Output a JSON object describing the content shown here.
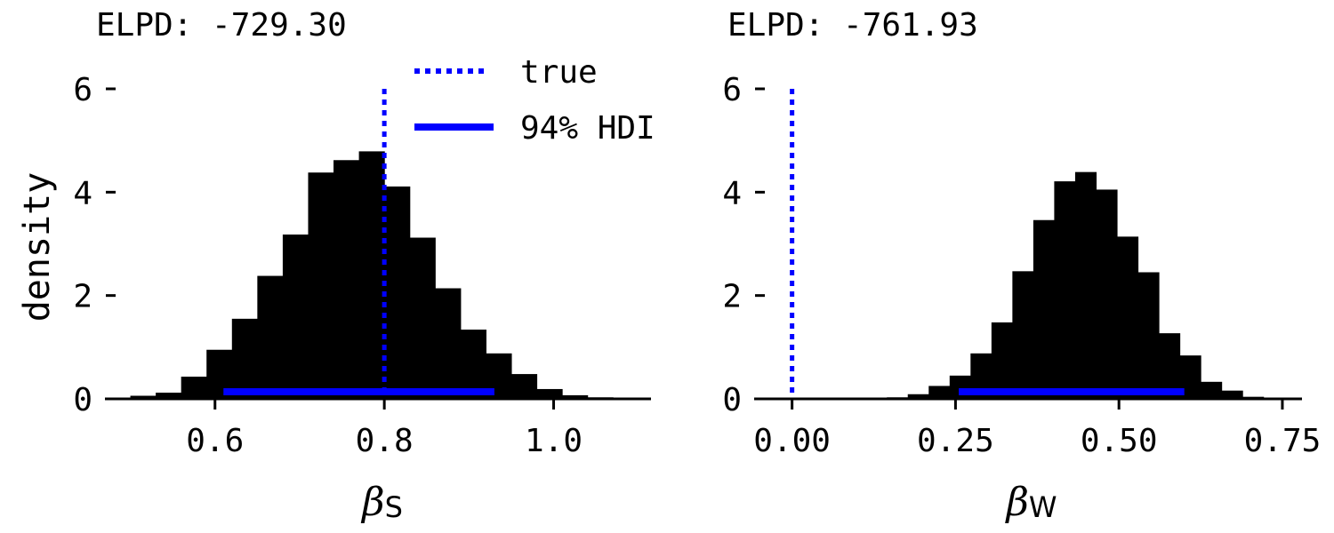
{
  "chart_data": [
    {
      "type": "histogram",
      "title": "ELPD: -729.30",
      "ylabel": "density",
      "xlabel": {
        "symbol": "β",
        "subscript": "S"
      },
      "xlim": [
        0.47,
        1.115
      ],
      "ylim": [
        0,
        6
      ],
      "xticks": [
        0.6,
        0.8,
        1.0
      ],
      "xtick_labels": [
        "0.6",
        "0.8",
        "1.0"
      ],
      "yticks": [
        0,
        2,
        4,
        6
      ],
      "ytick_labels": [
        "0",
        "2",
        "4",
        "6"
      ],
      "bins": [
        {
          "x0": 0.5,
          "x1": 0.53,
          "density": 0.06
        },
        {
          "x0": 0.53,
          "x1": 0.56,
          "density": 0.12
        },
        {
          "x0": 0.56,
          "x1": 0.59,
          "density": 0.43
        },
        {
          "x0": 0.59,
          "x1": 0.62,
          "density": 0.95
        },
        {
          "x0": 0.62,
          "x1": 0.65,
          "density": 1.55
        },
        {
          "x0": 0.65,
          "x1": 0.68,
          "density": 2.38
        },
        {
          "x0": 0.68,
          "x1": 0.71,
          "density": 3.18
        },
        {
          "x0": 0.71,
          "x1": 0.74,
          "density": 4.38
        },
        {
          "x0": 0.74,
          "x1": 0.77,
          "density": 4.62
        },
        {
          "x0": 0.77,
          "x1": 0.8,
          "density": 4.79
        },
        {
          "x0": 0.8,
          "x1": 0.83,
          "density": 4.11
        },
        {
          "x0": 0.83,
          "x1": 0.86,
          "density": 3.12
        },
        {
          "x0": 0.86,
          "x1": 0.89,
          "density": 2.14
        },
        {
          "x0": 0.89,
          "x1": 0.92,
          "density": 1.34
        },
        {
          "x0": 0.92,
          "x1": 0.95,
          "density": 0.88
        },
        {
          "x0": 0.95,
          "x1": 0.98,
          "density": 0.48
        },
        {
          "x0": 0.98,
          "x1": 1.01,
          "density": 0.19
        },
        {
          "x0": 1.01,
          "x1": 1.04,
          "density": 0.07
        },
        {
          "x0": 1.04,
          "x1": 1.07,
          "density": 0.03
        }
      ],
      "true_value": 0.8,
      "hdi_94": [
        0.61,
        0.93
      ],
      "legend": {
        "placement": "top-right",
        "entries": [
          "true",
          "94% HDI"
        ]
      }
    },
    {
      "type": "histogram",
      "title": "ELPD: -761.93",
      "ylabel": "",
      "xlabel": {
        "symbol": "β",
        "subscript": "W"
      },
      "xlim": [
        -0.058,
        0.78
      ],
      "ylim": [
        0,
        6
      ],
      "xticks": [
        0.0,
        0.25,
        0.5,
        0.75
      ],
      "xtick_labels": [
        "0.00",
        "0.25",
        "0.50",
        "0.75"
      ],
      "yticks": [
        0,
        2,
        4,
        6
      ],
      "ytick_labels": [
        "0",
        "2",
        "4",
        "6"
      ],
      "bins": [
        {
          "x0": 0.145,
          "x1": 0.177,
          "density": 0.03
        },
        {
          "x0": 0.177,
          "x1": 0.209,
          "density": 0.09
        },
        {
          "x0": 0.209,
          "x1": 0.241,
          "density": 0.25
        },
        {
          "x0": 0.241,
          "x1": 0.273,
          "density": 0.45
        },
        {
          "x0": 0.273,
          "x1": 0.305,
          "density": 0.88
        },
        {
          "x0": 0.305,
          "x1": 0.337,
          "density": 1.48
        },
        {
          "x0": 0.337,
          "x1": 0.369,
          "density": 2.47
        },
        {
          "x0": 0.369,
          "x1": 0.401,
          "density": 3.46
        },
        {
          "x0": 0.401,
          "x1": 0.433,
          "density": 4.21
        },
        {
          "x0": 0.433,
          "x1": 0.465,
          "density": 4.39
        },
        {
          "x0": 0.465,
          "x1": 0.497,
          "density": 4.05
        },
        {
          "x0": 0.497,
          "x1": 0.529,
          "density": 3.14
        },
        {
          "x0": 0.529,
          "x1": 0.561,
          "density": 2.45
        },
        {
          "x0": 0.561,
          "x1": 0.593,
          "density": 1.27
        },
        {
          "x0": 0.593,
          "x1": 0.625,
          "density": 0.84
        },
        {
          "x0": 0.625,
          "x1": 0.657,
          "density": 0.33
        },
        {
          "x0": 0.657,
          "x1": 0.689,
          "density": 0.16
        },
        {
          "x0": 0.689,
          "x1": 0.721,
          "density": 0.04
        },
        {
          "x0": 0.721,
          "x1": 0.753,
          "density": 0.02
        }
      ],
      "true_value": 0.0,
      "hdi_94": [
        0.255,
        0.6
      ]
    }
  ],
  "colors": {
    "bars": "#000000",
    "accent": "#0000ff",
    "axis": "#000000",
    "background": "#ffffff"
  }
}
